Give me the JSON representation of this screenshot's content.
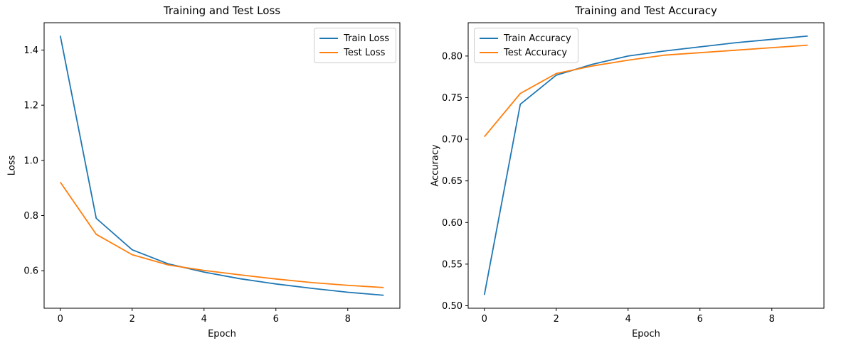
{
  "figure": {
    "background": "#ffffff",
    "text_color": "#000000"
  },
  "chart_data": [
    {
      "type": "line",
      "title": "Training and Test Loss",
      "xlabel": "Epoch",
      "ylabel": "Loss",
      "x": [
        0,
        1,
        2,
        3,
        4,
        5,
        6,
        7,
        8,
        9
      ],
      "series": [
        {
          "name": "Train Loss",
          "color": "#1f77b4",
          "values": [
            1.452,
            0.79,
            0.676,
            0.625,
            0.595,
            0.571,
            0.552,
            0.536,
            0.522,
            0.511
          ]
        },
        {
          "name": "Test Loss",
          "color": "#ff7f0e",
          "values": [
            0.921,
            0.732,
            0.658,
            0.621,
            0.601,
            0.585,
            0.57,
            0.557,
            0.547,
            0.539
          ]
        }
      ],
      "xlim": [
        -0.45,
        9.45
      ],
      "ylim": [
        0.464,
        1.499
      ],
      "xticks": [
        {
          "v": 0,
          "label": "0"
        },
        {
          "v": 2,
          "label": "2"
        },
        {
          "v": 4,
          "label": "4"
        },
        {
          "v": 6,
          "label": "6"
        },
        {
          "v": 8,
          "label": "8"
        }
      ],
      "yticks": [
        {
          "v": 0.6,
          "label": "0.6"
        },
        {
          "v": 0.8,
          "label": "0.8"
        },
        {
          "v": 1.0,
          "label": "1.0"
        },
        {
          "v": 1.2,
          "label": "1.2"
        },
        {
          "v": 1.4,
          "label": "1.4"
        }
      ],
      "legend_position": "upper-right",
      "grid": false
    },
    {
      "type": "line",
      "title": "Training and Test Accuracy",
      "xlabel": "Epoch",
      "ylabel": "Accuracy",
      "x": [
        0,
        1,
        2,
        3,
        4,
        5,
        6,
        7,
        8,
        9
      ],
      "series": [
        {
          "name": "Train Accuracy",
          "color": "#1f77b4",
          "values": [
            0.513,
            0.742,
            0.777,
            0.79,
            0.8,
            0.806,
            0.811,
            0.816,
            0.82,
            0.824
          ]
        },
        {
          "name": "Test Accuracy",
          "color": "#ff7f0e",
          "values": [
            0.703,
            0.755,
            0.779,
            0.788,
            0.795,
            0.801,
            0.804,
            0.807,
            0.81,
            0.813
          ]
        }
      ],
      "xlim": [
        -0.45,
        9.45
      ],
      "ylim": [
        0.497,
        0.84
      ],
      "xticks": [
        {
          "v": 0,
          "label": "0"
        },
        {
          "v": 2,
          "label": "2"
        },
        {
          "v": 4,
          "label": "4"
        },
        {
          "v": 6,
          "label": "6"
        },
        {
          "v": 8,
          "label": "8"
        }
      ],
      "yticks": [
        {
          "v": 0.5,
          "label": "0.50"
        },
        {
          "v": 0.55,
          "label": "0.55"
        },
        {
          "v": 0.6,
          "label": "0.60"
        },
        {
          "v": 0.65,
          "label": "0.65"
        },
        {
          "v": 0.7,
          "label": "0.70"
        },
        {
          "v": 0.75,
          "label": "0.75"
        },
        {
          "v": 0.8,
          "label": "0.80"
        }
      ],
      "legend_position": "upper-left",
      "grid": false
    }
  ]
}
